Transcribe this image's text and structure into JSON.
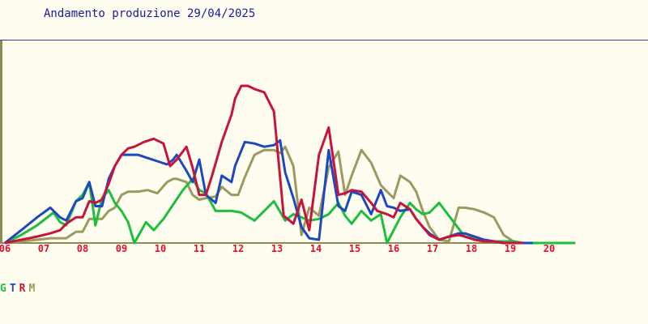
{
  "title": "Andamento produzione 29/04/2025",
  "colors": {
    "background": "#FFFCF0",
    "title": "#1A1A9E",
    "tick_labels": "#E0102A",
    "axis": "#8C8C52",
    "top_rule": "#3A3AA0"
  },
  "legend": [
    {
      "key": "G",
      "color": "#1CBF3C"
    },
    {
      "key": "T",
      "color": "#1E48C0"
    },
    {
      "key": "R",
      "color": "#C8143C"
    },
    {
      "key": "M",
      "color": "#9C9A5E"
    }
  ],
  "chart_data": {
    "type": "line",
    "title": "Andamento produzione 29/04/2025",
    "xlabel": "",
    "ylabel": "",
    "x_ticks": [
      "06",
      "07",
      "08",
      "09",
      "10",
      "11",
      "12",
      "13",
      "14",
      "15",
      "16",
      "17",
      "18",
      "19",
      "20"
    ],
    "xlim": [
      6,
      20.67
    ],
    "ylim": [
      0,
      100
    ],
    "grid": false,
    "legend_position": "bottom-left",
    "series": [
      {
        "name": "G",
        "color": "#1CBF3C",
        "x": [
          6,
          6.42,
          6.83,
          7.25,
          7.42,
          7.58,
          7.83,
          8.0,
          8.17,
          8.33,
          8.5,
          8.67,
          8.83,
          9.0,
          9.17,
          9.33,
          9.63,
          9.83,
          10.08,
          10.33,
          10.58,
          10.83,
          11.0,
          11.17,
          11.42,
          11.58,
          11.83,
          12.08,
          12.42,
          12.67,
          12.92,
          13.21,
          13.42,
          13.63,
          13.83,
          14.08,
          14.33,
          14.58,
          14.75,
          14.92,
          15.17,
          15.42,
          15.67,
          15.83,
          16.0,
          16.17,
          16.42,
          16.58,
          16.75,
          16.92,
          17.17,
          17.42,
          17.67,
          17.83,
          18.08,
          18.33,
          18.58,
          18.83,
          19.08,
          19.33,
          19.58,
          19.83,
          20.08,
          20.33,
          20.67
        ],
        "y": [
          0,
          5,
          11,
          19,
          13,
          11,
          26,
          30,
          38,
          11,
          28,
          33,
          25,
          20,
          13,
          0,
          13,
          8,
          15,
          24,
          33,
          40,
          33,
          31,
          20,
          20,
          20,
          19,
          14,
          20,
          26,
          14,
          18,
          16,
          14,
          15,
          18,
          25,
          17,
          12,
          20,
          14,
          18,
          0,
          8,
          16,
          25,
          21,
          18,
          19,
          25,
          17,
          9,
          4,
          3,
          2,
          1,
          1,
          1,
          0,
          0,
          0,
          0,
          0,
          0
        ]
      },
      {
        "name": "T",
        "color": "#1E48C0",
        "x": [
          6,
          6.42,
          6.83,
          7.17,
          7.42,
          7.58,
          7.83,
          8.0,
          8.17,
          8.33,
          8.5,
          8.67,
          8.83,
          9.0,
          9.17,
          9.42,
          9.67,
          9.92,
          10.17,
          10.33,
          10.42,
          10.67,
          10.83,
          11.0,
          11.17,
          11.42,
          11.58,
          11.83,
          11.92,
          12.17,
          12.42,
          12.67,
          12.92,
          13.08,
          13.21,
          13.42,
          13.63,
          13.83,
          14.08,
          14.33,
          14.58,
          14.75,
          14.92,
          15.17,
          15.42,
          15.67,
          15.83,
          16.0,
          16.17,
          16.42,
          16.58,
          16.75,
          16.92,
          17.17,
          17.42,
          17.67,
          17.83,
          18.08,
          18.33,
          18.58,
          18.83,
          19.08,
          19.33,
          19.58
        ],
        "y": [
          0,
          8,
          16,
          22,
          16,
          14,
          26,
          28,
          38,
          23,
          23,
          40,
          48,
          55,
          55,
          55,
          53,
          51,
          49,
          52,
          55,
          45,
          38,
          52,
          30,
          25,
          42,
          38,
          48,
          63,
          62,
          60,
          61,
          64,
          44,
          28,
          10,
          3,
          2,
          58,
          23,
          20,
          32,
          30,
          18,
          33,
          23,
          22,
          20,
          21,
          15,
          10,
          6,
          2,
          4,
          6,
          6,
          4,
          2,
          1,
          0,
          0,
          0,
          0
        ]
      },
      {
        "name": "R",
        "color": "#C8143C",
        "x": [
          6,
          6.42,
          6.83,
          7.17,
          7.42,
          7.58,
          7.83,
          8.0,
          8.17,
          8.33,
          8.5,
          8.67,
          8.83,
          9.0,
          9.17,
          9.33,
          9.58,
          9.83,
          10.08,
          10.25,
          10.42,
          10.67,
          10.83,
          11.0,
          11.17,
          11.33,
          11.58,
          11.83,
          11.92,
          12.08,
          12.25,
          12.42,
          12.67,
          12.92,
          13.17,
          13.42,
          13.63,
          13.83,
          14.08,
          14.33,
          14.58,
          14.75,
          14.92,
          15.17,
          15.42,
          15.58,
          15.83,
          16.0,
          16.17,
          16.42,
          16.58,
          16.75,
          16.92,
          17.17,
          17.42,
          17.67,
          17.83,
          18.08,
          18.33,
          18.58,
          18.83,
          19.08,
          19.33
        ],
        "y": [
          0,
          2,
          4,
          6,
          8,
          12,
          16,
          16,
          26,
          25,
          27,
          37,
          48,
          55,
          59,
          60,
          63,
          65,
          62,
          48,
          52,
          60,
          47,
          30,
          30,
          42,
          63,
          80,
          90,
          98,
          98,
          96,
          94,
          82,
          17,
          12,
          27,
          8,
          55,
          72,
          30,
          31,
          33,
          32,
          25,
          20,
          18,
          16,
          25,
          21,
          15,
          10,
          5,
          2,
          4,
          5,
          4,
          2,
          1,
          1,
          0,
          0,
          0
        ]
      },
      {
        "name": "M",
        "color": "#9C9A5E",
        "x": [
          6,
          6.42,
          6.83,
          7.17,
          7.42,
          7.58,
          7.83,
          8.0,
          8.17,
          8.33,
          8.5,
          8.67,
          8.83,
          9.0,
          9.17,
          9.42,
          9.67,
          9.92,
          10.17,
          10.33,
          10.42,
          10.67,
          10.83,
          11.0,
          11.17,
          11.42,
          11.58,
          11.83,
          12.0,
          12.17,
          12.42,
          12.67,
          12.92,
          13.08,
          13.21,
          13.42,
          13.63,
          13.83,
          14.08,
          14.33,
          14.58,
          14.75,
          14.92,
          15.17,
          15.42,
          15.67,
          15.83,
          16.0,
          16.17,
          16.42,
          16.58,
          16.75,
          16.92,
          17.17,
          17.42,
          17.67,
          17.83,
          18.08,
          18.33,
          18.58,
          18.83,
          19.08,
          19.33,
          19.58,
          19.83,
          20.08,
          20.33,
          20.67
        ],
        "y": [
          0,
          1,
          2,
          3,
          3,
          3,
          7,
          7,
          15,
          15,
          15,
          20,
          22,
          30,
          32,
          32,
          33,
          31,
          38,
          40,
          40,
          38,
          30,
          27,
          28,
          29,
          35,
          30,
          30,
          41,
          55,
          58,
          58,
          56,
          60,
          48,
          5,
          22,
          17,
          47,
          57,
          30,
          42,
          58,
          50,
          36,
          32,
          28,
          42,
          38,
          32,
          20,
          10,
          2,
          1,
          22,
          22,
          21,
          19,
          16,
          5,
          1,
          0,
          0,
          0,
          0,
          0,
          0
        ]
      }
    ]
  }
}
